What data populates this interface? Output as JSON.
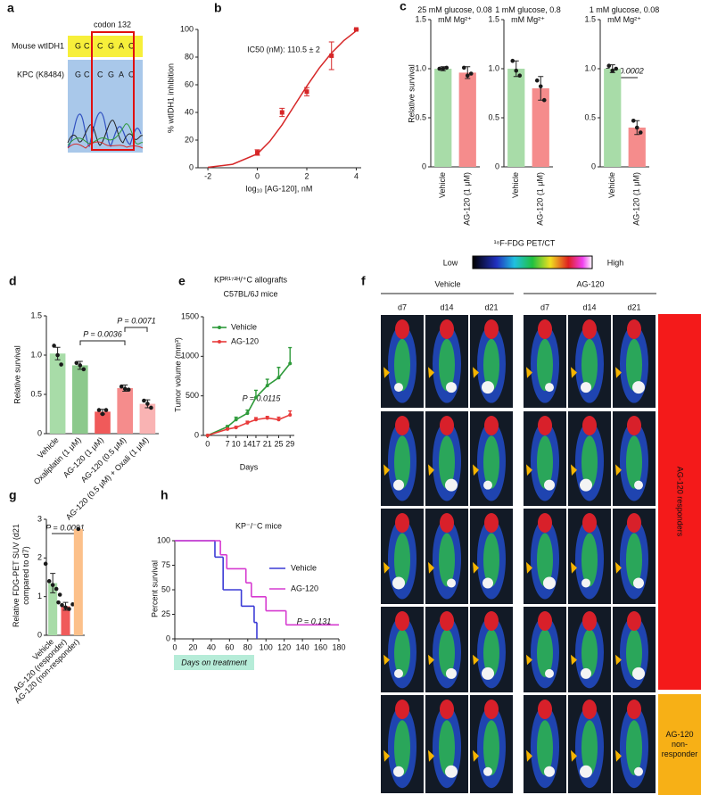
{
  "panel_labels": [
    "a",
    "b",
    "c",
    "d",
    "e",
    "f",
    "g",
    "h"
  ],
  "sequencing": {
    "codon": "codon 132",
    "rows": [
      "Mouse wtIDH1",
      "KPC (K8484)"
    ],
    "bases": [
      [
        "G",
        "C",
        "C",
        "G",
        "A",
        "C"
      ],
      [
        "G",
        "C",
        "C",
        "G",
        "A",
        "C"
      ]
    ]
  },
  "pet": {
    "title": "¹⁸F-FDG PET/CT",
    "low": "Low",
    "high": "High",
    "groups": [
      "Vehicle",
      "AG-120"
    ],
    "days": [
      "d7",
      "d14",
      "d21",
      "d7",
      "d14",
      "d21"
    ],
    "responders": "AG-120 responders",
    "non_responder": "AG-120 non-responder"
  },
  "chart_data": [
    {
      "type": "scatter",
      "xlabel": "log₁₀ [AG-120], nM",
      "ylabel": "% wtIDH1 inhibition",
      "annotations": [
        "IC50 (nM): 110.5 ± 2"
      ],
      "color": "#d62728",
      "x": [
        0,
        1,
        2,
        3,
        4
      ],
      "values": [
        11,
        40,
        55,
        81,
        100
      ],
      "errors": [
        2,
        3,
        3,
        10,
        0
      ],
      "fit": {
        "x": [
          -2,
          -1,
          0,
          0.5,
          1,
          1.5,
          2,
          2.5,
          3,
          3.5,
          4
        ],
        "values": [
          0.3,
          2.5,
          10,
          19,
          31,
          45,
          59,
          72,
          83,
          92,
          99
        ]
      },
      "xlim": [
        -2.4,
        4.2
      ],
      "xticks": [
        -2,
        0,
        2,
        4
      ],
      "ylim": [
        0,
        100
      ],
      "yticks": [
        0,
        20,
        40,
        60,
        80,
        100
      ]
    },
    {
      "type": "bar",
      "title": "25 mM glucose, 0.08 mM Mg²⁺",
      "ylabel": "Relative survival",
      "categories": [
        "Vehicle",
        "AG-120 (1 μM)"
      ],
      "colors": [
        "#a8dca8",
        "#f58c8c"
      ],
      "values": [
        1.0,
        0.96
      ],
      "errors": [
        0.02,
        0.06
      ],
      "points": [
        [
          1.0,
          1.0,
          1.01
        ],
        [
          1.01,
          0.93,
          0.95
        ]
      ],
      "ylim": [
        0,
        1.5
      ],
      "yticks": [
        0,
        0.5,
        {
          "value": 1,
          "label": "1.0"
        },
        1.5
      ]
    },
    {
      "type": "bar",
      "title": "1 mM glucose, 0.8 mM Mg²⁺",
      "categories": [
        "Vehicle",
        "AG-120 (1 μM)"
      ],
      "colors": [
        "#a8dca8",
        "#f58c8c"
      ],
      "values": [
        1.0,
        0.8
      ],
      "errors": [
        0.08,
        0.12
      ],
      "points": [
        [
          1.08,
          0.98,
          0.93
        ],
        [
          0.88,
          0.82,
          0.68
        ]
      ],
      "ylim": [
        0,
        1.5
      ],
      "yticks": [
        0,
        0.5,
        {
          "value": 1,
          "label": "1.0"
        },
        1.5
      ]
    },
    {
      "type": "bar",
      "title": "1 mM glucose, 0.08 mM Mg²⁺",
      "annotations": [
        "P = 0.0002"
      ],
      "categories": [
        "Vehicle",
        "AG-120 (1 μM)"
      ],
      "colors": [
        "#a8dca8",
        "#f58c8c"
      ],
      "values": [
        1.0,
        0.4
      ],
      "errors": [
        0.04,
        0.07
      ],
      "points": [
        [
          1.03,
          0.98,
          1.0
        ],
        [
          0.47,
          0.4,
          0.35
        ]
      ],
      "ylim": [
        0,
        1.5
      ],
      "yticks": [
        0,
        0.5,
        {
          "value": 1,
          "label": "1.0"
        },
        1.5
      ]
    },
    {
      "type": "bar",
      "ylabel": "Relative survival",
      "annotations": [
        "P = 0.0036",
        "P = 0.0071"
      ],
      "categories": [
        "Vehicle",
        "Oxaliplatin (1 μM)",
        "AG-120 (1 μM)",
        "AG-120 (0.5 μM)",
        "AG-120 (0.5 μM) + Oxali (1 μM)"
      ],
      "colors": [
        "#a8dca8",
        "#8cc98c",
        "#f05a5a",
        "#f58c8c",
        "#f9b3b3"
      ],
      "values": [
        1.02,
        0.87,
        0.28,
        0.58,
        0.38
      ],
      "errors": [
        0.08,
        0.05,
        0.03,
        0.04,
        0.05
      ],
      "points": [
        [
          1.12,
          1.0,
          0.88
        ],
        [
          0.9,
          0.87,
          0.82
        ],
        [
          0.3,
          0.25,
          0.3
        ],
        [
          0.6,
          0.57,
          0.56
        ],
        [
          0.42,
          0.38,
          0.33
        ]
      ],
      "ylim": [
        0,
        1.5
      ],
      "yticks": [
        0,
        0.5,
        {
          "value": 1,
          "label": "1.0"
        },
        1.5
      ]
    },
    {
      "type": "line",
      "title": "KPᴿ¹⁷²ᴴ/⁺C allografts",
      "subtitle": "C57BL/6J mice",
      "xlabel": "Days",
      "ylabel": "Tumor volume (mm³)",
      "annotations": [
        "P = 0.0115"
      ],
      "x": [
        0,
        7,
        10,
        14,
        17,
        21,
        25,
        29
      ],
      "series": [
        {
          "name": "Vehicle",
          "color": "#2e9a3a",
          "values": [
            0,
            110,
            200,
            280,
            480,
            630,
            730,
            910
          ],
          "errors": [
            0,
            15,
            30,
            40,
            90,
            80,
            130,
            200
          ]
        },
        {
          "name": "AG-120",
          "color": "#e83a3a",
          "values": [
            0,
            80,
            100,
            160,
            200,
            220,
            200,
            260
          ],
          "errors": [
            0,
            10,
            15,
            20,
            25,
            20,
            30,
            50
          ]
        }
      ],
      "xlim": [
        -1.5,
        30.5
      ],
      "xticks": [
        0,
        7,
        10,
        14,
        17,
        21,
        25,
        29
      ],
      "ylim": [
        0,
        1500
      ],
      "yticks": [
        0,
        500,
        1000,
        1500
      ]
    },
    {
      "type": "bar",
      "ylabel": "Relative FDG-PET SUV (d21 compared to d7)",
      "annotations": [
        "P = 0.0091"
      ],
      "categories": [
        "Vehicle",
        "AG-120 (responder)",
        "AG-120 (non-responder)"
      ],
      "colors": [
        "#a8dca8",
        "#f05a5a",
        "#fcc08a"
      ],
      "values": [
        1.35,
        0.75,
        2.75
      ],
      "errors": [
        0.25,
        0.1,
        null
      ],
      "points": [
        [
          1.85,
          1.4,
          1.3,
          1.2,
          1.05
        ],
        [
          0.85,
          0.78,
          0.72,
          0.68,
          0.8
        ],
        [
          2.75
        ]
      ],
      "ylim": [
        0,
        3
      ],
      "yticks": [
        0,
        1,
        2,
        3
      ]
    },
    {
      "type": "step",
      "title": "KP⁻/⁻C mice",
      "ylabel": "Percent survival",
      "annotations": [
        "P = 0.131",
        "Days on treatment"
      ],
      "series": [
        {
          "name": "Vehicle",
          "color": "#3b3bd6",
          "x": [
            0,
            44,
            53,
            73,
            87,
            90
          ],
          "values": [
            100,
            83.3,
            50,
            33.3,
            16.7,
            0
          ]
        },
        {
          "name": "AG-120",
          "color": "#d63bd0",
          "x": [
            0,
            50,
            57,
            78,
            84,
            100,
            122,
            180
          ],
          "values": [
            100,
            85.7,
            71.4,
            57.1,
            42.9,
            28.6,
            14.3,
            14.3
          ]
        }
      ],
      "xlim": [
        0,
        180
      ],
      "xticks": [
        0,
        20,
        40,
        60,
        80,
        100,
        120,
        140,
        160,
        180
      ],
      "ylim": [
        0,
        100
      ],
      "yticks": [
        0,
        25,
        50,
        75,
        100
      ]
    }
  ]
}
